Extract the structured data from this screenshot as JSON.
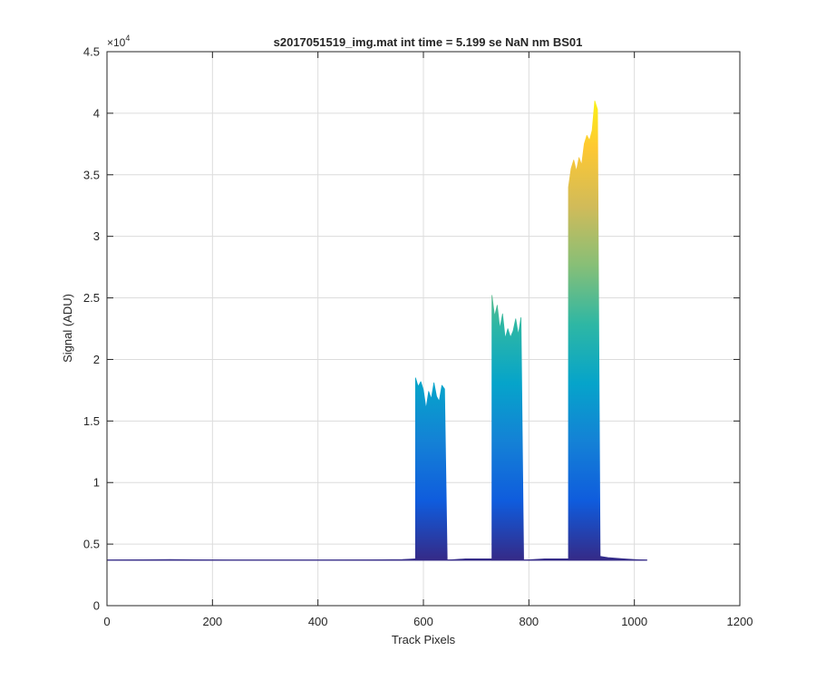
{
  "chart_data": {
    "type": "area",
    "title": "s2017051519_img.mat int time = 5.199 se  NaN nm BS01",
    "xlabel": "Track Pixels",
    "ylabel": "Signal (ADU)",
    "y_exponent_label": "×10",
    "y_exponent_power": "4",
    "xlim": [
      0,
      1200
    ],
    "ylim": [
      0,
      45000
    ],
    "x_ticks": [
      0,
      200,
      400,
      600,
      800,
      1000,
      1200
    ],
    "x_tick_labels": [
      "0",
      "200",
      "400",
      "600",
      "800",
      "1000",
      "1200"
    ],
    "y_ticks": [
      0,
      5000,
      10000,
      15000,
      20000,
      25000,
      30000,
      35000,
      40000,
      45000
    ],
    "y_tick_labels": [
      "0",
      "0.5",
      "1",
      "1.5",
      "2",
      "2.5",
      "3",
      "3.5",
      "4",
      "4.5"
    ],
    "grid": true,
    "baseline": 3700,
    "x_data_range": [
      1,
      1024
    ],
    "colormap": "parula",
    "colormap_stops": [
      "#352a87",
      "#0f5cdd",
      "#1481d6",
      "#06a4ca",
      "#2eb7a4",
      "#87bf77",
      "#d1bb59",
      "#fec832",
      "#f9fb0e"
    ],
    "series": [
      {
        "x": [
          0,
          120,
          250,
          400,
          500,
          560,
          585
        ],
        "y": [
          3700,
          3750,
          3700,
          3700,
          3720,
          3750,
          3800
        ]
      },
      {
        "x": [
          585,
          590,
          595,
          600,
          605,
          610,
          615,
          620,
          625,
          630,
          635,
          640,
          645
        ],
        "y": [
          18500,
          17800,
          18200,
          17500,
          16000,
          17400,
          16800,
          18100,
          17000,
          16600,
          17900,
          17600,
          3800
        ]
      },
      {
        "x": [
          645,
          680,
          730
        ],
        "y": [
          3700,
          3800,
          3800
        ]
      },
      {
        "x": [
          730,
          735,
          740,
          745,
          750,
          755,
          760,
          765,
          770,
          775,
          780,
          785,
          790
        ],
        "y": [
          25200,
          23500,
          24400,
          22500,
          23700,
          21700,
          22500,
          21800,
          22300,
          23300,
          22000,
          23400,
          3900
        ]
      },
      {
        "x": [
          790,
          830,
          875
        ],
        "y": [
          3700,
          3800,
          3800
        ]
      },
      {
        "x": [
          875,
          880,
          885,
          890,
          895,
          900,
          905,
          910,
          915,
          920,
          925,
          930,
          935
        ],
        "y": [
          34000,
          35500,
          36200,
          35300,
          36400,
          35800,
          37500,
          38200,
          37800,
          38600,
          41000,
          40300,
          4000
        ]
      },
      {
        "x": [
          935,
          950,
          980,
          1000,
          1024
        ],
        "y": [
          4000,
          3900,
          3800,
          3750,
          3700
        ]
      }
    ]
  }
}
